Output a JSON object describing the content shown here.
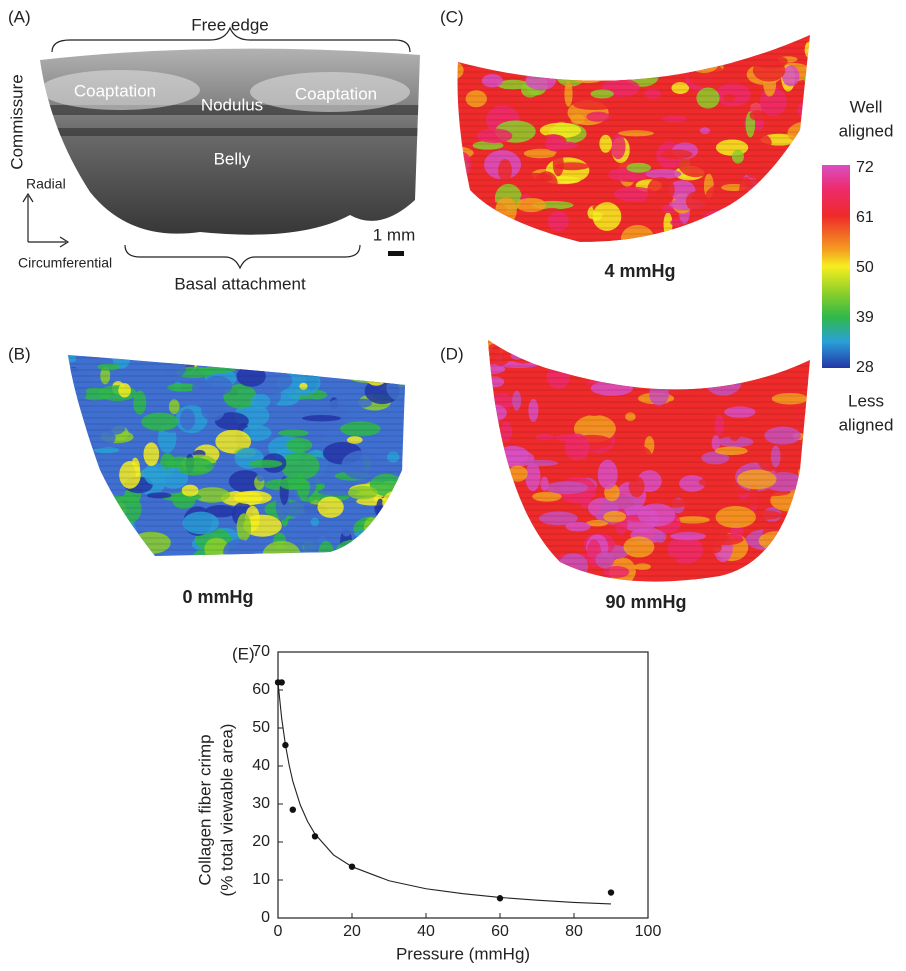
{
  "panel_a": {
    "label": "(A)",
    "free_edge": "Free edge",
    "commissure": "Commissure",
    "coaptation_left": "Coaptation",
    "nodulus": "Nodulus",
    "coaptation_right": "Coaptation",
    "belly": "Belly",
    "radial": "Radial",
    "circumferential": "Circumferential",
    "scale": "1 mm",
    "basal": "Basal attachment"
  },
  "panel_b": {
    "label": "(B)",
    "caption": "0 mmHg"
  },
  "panel_c": {
    "label": "(C)",
    "caption": "4 mmHg"
  },
  "panel_d": {
    "label": "(D)",
    "caption": "90 mmHg"
  },
  "colorbar": {
    "top_title": [
      "Well",
      "aligned"
    ],
    "bottom_title": [
      "Less",
      "aligned"
    ],
    "lim": [
      28,
      72
    ],
    "ticks": [
      72,
      61,
      50,
      39,
      28
    ]
  },
  "chart_data": {
    "type": "scatter",
    "label": "(E)",
    "x_label": "Pressure (mmHg)",
    "y_label": [
      "Collagen fiber crimp",
      "(% total viewable area)"
    ],
    "x": [
      0,
      1,
      2,
      4,
      10,
      20,
      60,
      90
    ],
    "values": [
      62,
      62,
      45.5,
      28.5,
      21.5,
      13.5,
      5.2,
      6.7
    ],
    "fit": {
      "x": [
        0,
        1,
        2,
        3,
        4,
        6,
        8,
        10,
        15,
        20,
        30,
        40,
        50,
        60,
        70,
        80,
        90
      ],
      "values": [
        62,
        52.5,
        45.6,
        40.3,
        36.0,
        29.8,
        25.4,
        22.1,
        16.6,
        13.5,
        9.8,
        7.7,
        6.4,
        5.4,
        4.7,
        4.1,
        3.7
      ]
    },
    "xlim": [
      0,
      100
    ],
    "xticks": [
      0,
      20,
      40,
      60,
      80,
      100
    ],
    "ylim": [
      0,
      70
    ],
    "yticks": [
      0,
      10,
      20,
      30,
      40,
      50,
      60,
      70
    ]
  }
}
